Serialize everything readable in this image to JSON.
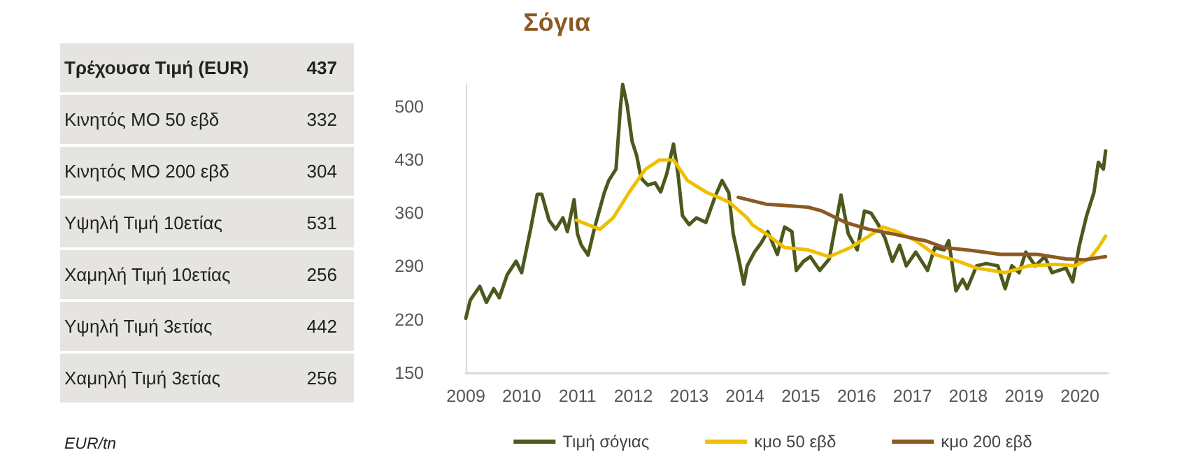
{
  "chart_data": [
    {
      "type": "other",
      "categories": [
        "Τρέχουσα Τιμή (EUR)",
        "Κινητός ΜΟ 50 εβδ",
        "Κινητός ΜΟ 200 εβδ",
        "Υψηλή Τιμή 10ετίας",
        "Χαμηλή Τιμή 10ετίας",
        "Υψηλή Τιμή 3ετίας",
        "Χαμηλή Τιμή 3ετίας"
      ],
      "values": [
        437,
        332,
        304,
        531,
        256,
        442,
        256
      ],
      "data_labels": true,
      "annotations": [
        "EUR/tn"
      ]
    },
    {
      "type": "line",
      "title": "Σόγια",
      "xlim": [
        2009,
        2020.5
      ],
      "xticks": [
        2009,
        2010,
        2011,
        2012,
        2013,
        2014,
        2015,
        2016,
        2017,
        2018,
        2019,
        2020
      ],
      "ylim": [
        150,
        530
      ],
      "yticks": [
        150,
        220,
        290,
        360,
        430,
        500
      ],
      "grid": false,
      "legend": "bottom",
      "marker": "none",
      "line_style": "solid",
      "series": [
        {
          "name": "Τιμή σόγιας",
          "color": "#4b5a1c",
          "x": [
            2009.0,
            2009.08,
            2009.25,
            2009.37,
            2009.5,
            2009.6,
            2009.74,
            2009.9,
            2010.0,
            2010.16,
            2010.28,
            2010.36,
            2010.49,
            2010.61,
            2010.74,
            2010.82,
            2010.94,
            2011.0,
            2011.07,
            2011.19,
            2011.31,
            2011.48,
            2011.56,
            2011.69,
            2011.77,
            2011.81,
            2011.89,
            2011.98,
            2012.06,
            2012.14,
            2012.26,
            2012.39,
            2012.49,
            2012.6,
            2012.72,
            2012.8,
            2012.88,
            2013.0,
            2013.13,
            2013.3,
            2013.46,
            2013.59,
            2013.71,
            2013.79,
            2013.88,
            2013.98,
            2014.04,
            2014.17,
            2014.29,
            2014.41,
            2014.58,
            2014.71,
            2014.84,
            2014.92,
            2015.05,
            2015.17,
            2015.34,
            2015.51,
            2015.64,
            2015.72,
            2015.85,
            2016.01,
            2016.14,
            2016.26,
            2016.39,
            2016.51,
            2016.64,
            2016.77,
            2016.89,
            2017.06,
            2017.27,
            2017.4,
            2017.57,
            2017.65,
            2017.78,
            2017.9,
            2017.98,
            2018.15,
            2018.32,
            2018.53,
            2018.66,
            2018.78,
            2018.91,
            2019.03,
            2019.2,
            2019.37,
            2019.5,
            2019.75,
            2019.87,
            2019.99,
            2020.12,
            2020.25,
            2020.33,
            2020.42,
            2020.46
          ],
          "values": [
            222,
            246,
            264,
            243,
            261,
            249,
            279,
            297,
            282,
            339,
            385,
            385,
            351,
            339,
            354,
            336,
            378,
            333,
            318,
            305,
            342,
            387,
            403,
            418,
            499,
            529,
            502,
            454,
            436,
            406,
            397,
            400,
            388,
            412,
            451,
            412,
            357,
            345,
            354,
            348,
            381,
            403,
            387,
            333,
            303,
            267,
            291,
            309,
            321,
            336,
            306,
            342,
            336,
            285,
            297,
            303,
            285,
            300,
            351,
            384,
            333,
            312,
            363,
            360,
            345,
            327,
            297,
            318,
            291,
            309,
            285,
            315,
            312,
            324,
            258,
            273,
            261,
            291,
            294,
            291,
            261,
            291,
            282,
            309,
            291,
            303,
            282,
            288,
            270,
            318,
            357,
            387,
            427,
            418,
            442
          ]
        },
        {
          "name": "κμο 50 εβδ",
          "color": "#f0bf00",
          "x": [
            2010.98,
            2011.4,
            2011.64,
            2011.93,
            2012.22,
            2012.47,
            2012.72,
            2012.97,
            2013.3,
            2013.71,
            2014.04,
            2014.13,
            2014.38,
            2014.71,
            2015.13,
            2015.51,
            2015.89,
            2016.22,
            2016.47,
            2016.72,
            2017.06,
            2017.4,
            2017.82,
            2018.15,
            2018.66,
            2019.08,
            2019.58,
            2019.91,
            2020.17,
            2020.33,
            2020.46
          ],
          "values": [
            351,
            339,
            354,
            388,
            418,
            430,
            430,
            403,
            388,
            375,
            354,
            345,
            333,
            315,
            312,
            303,
            315,
            330,
            342,
            336,
            324,
            306,
            297,
            288,
            282,
            291,
            293,
            291,
            300,
            315,
            330
          ]
        },
        {
          "name": "κμο 200 εβδ",
          "color": "#8b5a24",
          "x": [
            2013.88,
            2014.38,
            2014.58,
            2015.13,
            2015.38,
            2015.8,
            2016.22,
            2016.64,
            2017.23,
            2017.57,
            2018.07,
            2018.57,
            2019.24,
            2019.75,
            2020.08,
            2020.46
          ],
          "values": [
            381,
            372,
            371,
            368,
            363,
            348,
            339,
            333,
            324,
            315,
            311,
            306,
            306,
            300,
            299,
            303
          ]
        }
      ]
    }
  ]
}
